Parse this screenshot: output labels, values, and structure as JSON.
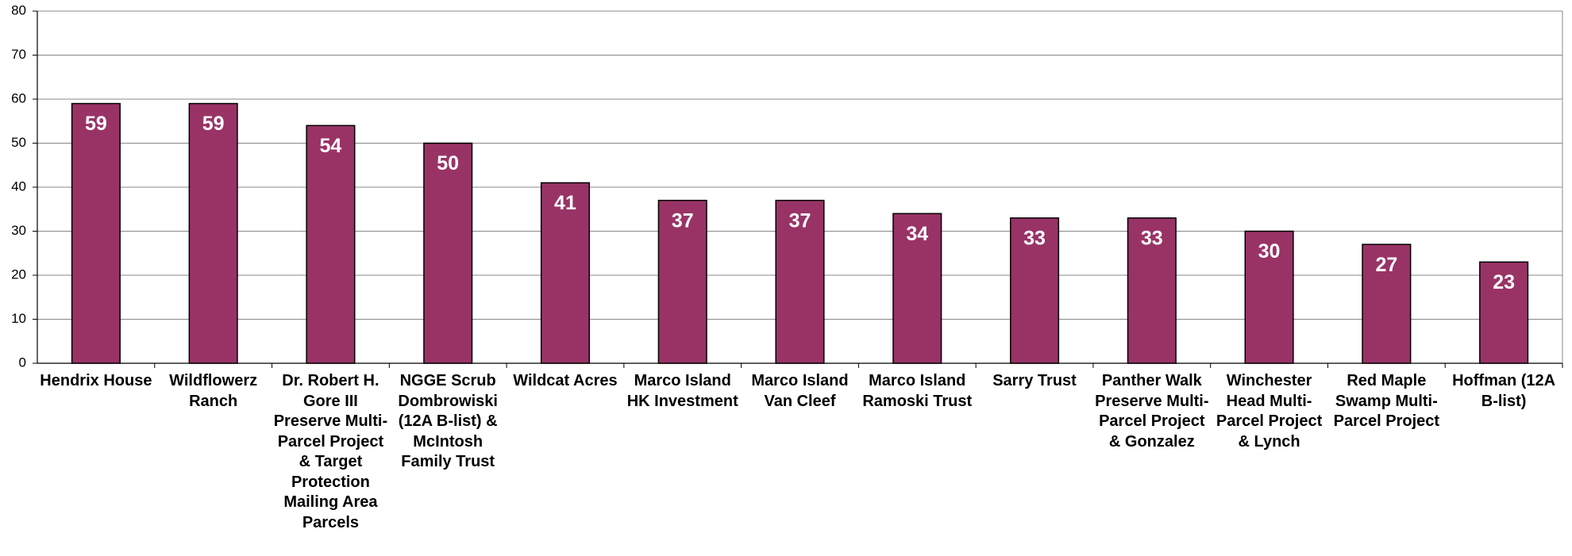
{
  "chart_data": {
    "type": "bar",
    "categories": [
      "Hendrix House",
      "Wildflowerz Ranch",
      "Dr. Robert H. Gore III Preserve Multi-Parcel Project & Target Protection Mailing Area Parcels",
      "NGGE Scrub Dombrowiski (12A B-list) & McIntosh Family Trust",
      "Wildcat Acres",
      "Marco Island HK Investment",
      "Marco Island Van Cleef",
      "Marco Island Ramoski Trust",
      "Sarry Trust",
      "Panther Walk Preserve Multi-Parcel Project & Gonzalez",
      "Winchester Head Multi-Parcel Project & Lynch",
      "Red Maple Swamp Multi-Parcel Project",
      "Hoffman (12A B-list)"
    ],
    "values": [
      59,
      59,
      54,
      50,
      41,
      37,
      37,
      34,
      33,
      33,
      30,
      27,
      23
    ],
    "color": "#993366",
    "ylim": [
      0,
      80
    ],
    "yticks": [
      0,
      10,
      20,
      30,
      40,
      50,
      60,
      70,
      80
    ],
    "grid": true
  }
}
